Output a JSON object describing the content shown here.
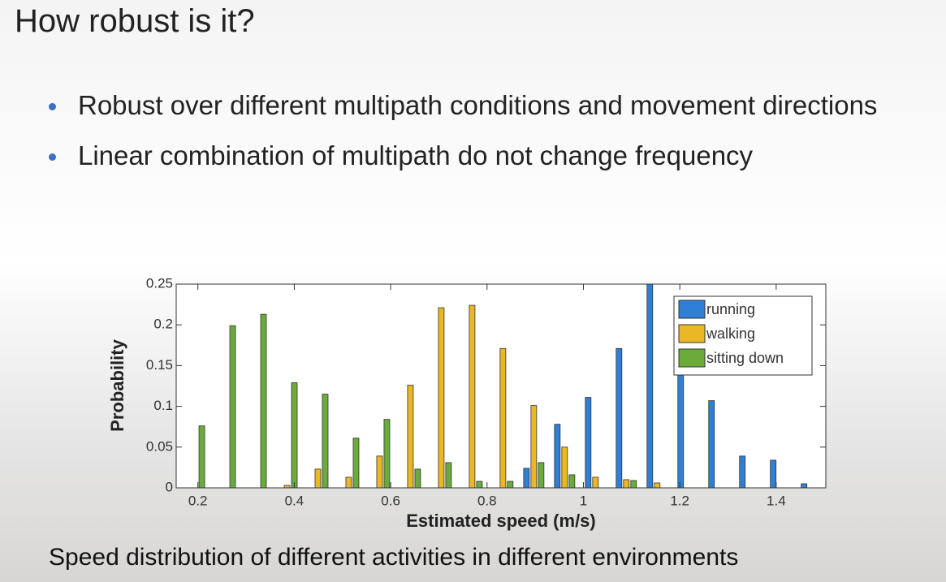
{
  "title": "How robust is it?",
  "bullets": [
    "Robust over different multipath conditions and movement directions",
    "Linear combination of multipath do not change frequency"
  ],
  "caption": "Speed distribution of different activities in different environments",
  "chart_data": {
    "type": "bar",
    "x_label": "Estimated speed (m/s)",
    "y_label": "Probability",
    "x": [
      0.193,
      0.257,
      0.321,
      0.385,
      0.449,
      0.513,
      0.577,
      0.641,
      0.705,
      0.769,
      0.833,
      0.897,
      0.961,
      1.025,
      1.089,
      1.153,
      1.217,
      1.281,
      1.345,
      1.409,
      1.473
    ],
    "series": [
      {
        "name": "running",
        "color": "#2f7fd6",
        "values": [
          0,
          0,
          0,
          0,
          0,
          0,
          0,
          0,
          0,
          0,
          0,
          0.024,
          0.078,
          0.111,
          0.171,
          0.25,
          0.16,
          0.107,
          0.039,
          0.034,
          0.005
        ]
      },
      {
        "name": "walking",
        "color": "#e9b824",
        "values": [
          0,
          0,
          0,
          0.003,
          0.023,
          0.013,
          0.039,
          0.126,
          0.221,
          0.224,
          0.171,
          0.101,
          0.05,
          0.013,
          0.01,
          0.006,
          0,
          0,
          0,
          0,
          0
        ]
      },
      {
        "name": "sitting down",
        "color": "#6aab3c",
        "values": [
          0.076,
          0.199,
          0.213,
          0.129,
          0.115,
          0.061,
          0.084,
          0.023,
          0.031,
          0.008,
          0.008,
          0.031,
          0.016,
          0,
          0.009,
          0,
          0,
          0,
          0,
          0,
          0
        ]
      }
    ],
    "xlim": [
      0.155,
      1.503
    ],
    "ylim": [
      0,
      0.25
    ],
    "xticks": [
      0.2,
      0.4,
      0.6,
      0.8,
      1,
      1.2,
      1.4
    ],
    "yticks": [
      0,
      0.05,
      0.1,
      0.15,
      0.2,
      0.25
    ],
    "legend": "upper-right"
  }
}
